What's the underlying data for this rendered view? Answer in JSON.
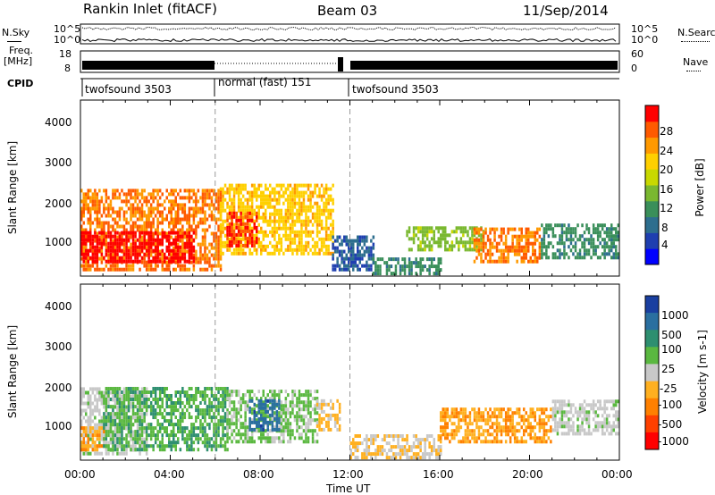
{
  "header": {
    "title": "Rankin Inlet (fitACF)",
    "beam": "Beam 03",
    "date": "11/Sep/2014"
  },
  "left_labels": {
    "nsky": "N.Sky",
    "freq": "Freq.",
    "freq_unit": "[MHz]",
    "cpid": "CPID"
  },
  "right_labels": {
    "nsearch": "N.Search",
    "nave": "Nave"
  },
  "noise_axis": {
    "left_ticks": [
      "10^5",
      "10^0"
    ],
    "right_ticks": [
      "10^5",
      "10^0"
    ]
  },
  "freq_axis": {
    "left_ticks": [
      "18",
      "8"
    ],
    "right_ticks": [
      "60",
      "0"
    ]
  },
  "cpid_segments": [
    {
      "label": "twofsound 3503",
      "start": 0,
      "end": 6
    },
    {
      "label": "normal (fast) 151",
      "start": 6,
      "end": 12
    },
    {
      "label": "twofsound 3503",
      "start": 12,
      "end": 24
    }
  ],
  "axes": {
    "ylabel": "Slant Range [km]",
    "xlabel": "Time UT",
    "xticks": [
      "00:00",
      "04:00",
      "08:00",
      "12:00",
      "16:00",
      "20:00",
      "00:00"
    ],
    "yticks": [
      "1000",
      "2000",
      "3000",
      "4000"
    ]
  },
  "colorbars": {
    "power": {
      "label": "Power [dB]",
      "ticks": [
        "4",
        "8",
        "12",
        "16",
        "20",
        "24",
        "28"
      ],
      "colors": [
        "#0000ff",
        "#1f3fb0",
        "#2d6e8e",
        "#3a8f5a",
        "#7ab830",
        "#c8d800",
        "#ffd000",
        "#ff9900",
        "#ff5a00",
        "#ff0000"
      ]
    },
    "velocity": {
      "label": "Velocity [m s-1]",
      "ticks": [
        "1000",
        "500",
        "100",
        "25",
        "-25",
        "-100",
        "-500",
        "-1000"
      ],
      "colors": [
        "#1a3fa0",
        "#2a6fa0",
        "#2e8f70",
        "#5ab840",
        "#c8c8c8",
        "#ffb020",
        "#ff8000",
        "#ff4000",
        "#ff0000"
      ]
    }
  },
  "chart_data": [
    {
      "type": "heatmap",
      "title": "Power",
      "xlabel": "Time UT",
      "ylabel": "Slant Range [km]",
      "xlim": [
        0,
        24
      ],
      "ylim": [
        180,
        4600
      ],
      "colorbar_label": "Power [dB]",
      "colorbar_range": [
        0,
        30
      ],
      "regions": [
        {
          "t0": 0.0,
          "t1": 6.2,
          "r0": 300,
          "r1": 2300,
          "value": 24
        },
        {
          "t0": 0.0,
          "t1": 5.0,
          "r0": 500,
          "r1": 1300,
          "value": 29
        },
        {
          "t0": 6.2,
          "t1": 11.2,
          "r0": 700,
          "r1": 2500,
          "value": 20
        },
        {
          "t0": 6.5,
          "t1": 7.8,
          "r0": 900,
          "r1": 1800,
          "value": 27
        },
        {
          "t0": 11.2,
          "t1": 13.0,
          "r0": 300,
          "r1": 1200,
          "value": 6
        },
        {
          "t0": 13.0,
          "t1": 16.0,
          "r0": 200,
          "r1": 600,
          "value": 10
        },
        {
          "t0": 14.5,
          "t1": 18.0,
          "r0": 800,
          "r1": 1400,
          "value": 14
        },
        {
          "t0": 17.5,
          "t1": 20.5,
          "r0": 500,
          "r1": 1400,
          "value": 24
        },
        {
          "t0": 20.5,
          "t1": 24.0,
          "r0": 600,
          "r1": 1500,
          "value": 10
        }
      ]
    },
    {
      "type": "heatmap",
      "title": "Velocity",
      "xlabel": "Time UT",
      "ylabel": "Slant Range [km]",
      "xlim": [
        0,
        24
      ],
      "ylim": [
        180,
        4600
      ],
      "colorbar_label": "Velocity [m s-1]",
      "colorbar_range": [
        -1000,
        1000
      ],
      "regions": [
        {
          "t0": 0.0,
          "t1": 3.0,
          "r0": 300,
          "r1": 2000,
          "value": 25
        },
        {
          "t0": 0.0,
          "t1": 1.0,
          "r0": 400,
          "r1": 1000,
          "value": -300
        },
        {
          "t0": 1.0,
          "t1": 6.5,
          "r0": 400,
          "r1": 2000,
          "value": 300
        },
        {
          "t0": 6.5,
          "t1": 10.5,
          "r0": 600,
          "r1": 1900,
          "value": 150
        },
        {
          "t0": 7.5,
          "t1": 8.8,
          "r0": 900,
          "r1": 1700,
          "value": 700
        },
        {
          "t0": 10.5,
          "t1": 11.5,
          "r0": 900,
          "r1": 1700,
          "value": -150
        },
        {
          "t0": 12.0,
          "t1": 16.0,
          "r0": 200,
          "r1": 800,
          "value": -100
        },
        {
          "t0": 16.0,
          "t1": 21.0,
          "r0": 600,
          "r1": 1500,
          "value": -300
        },
        {
          "t0": 21.0,
          "t1": 24.0,
          "r0": 800,
          "r1": 1700,
          "value": 25
        }
      ]
    }
  ]
}
